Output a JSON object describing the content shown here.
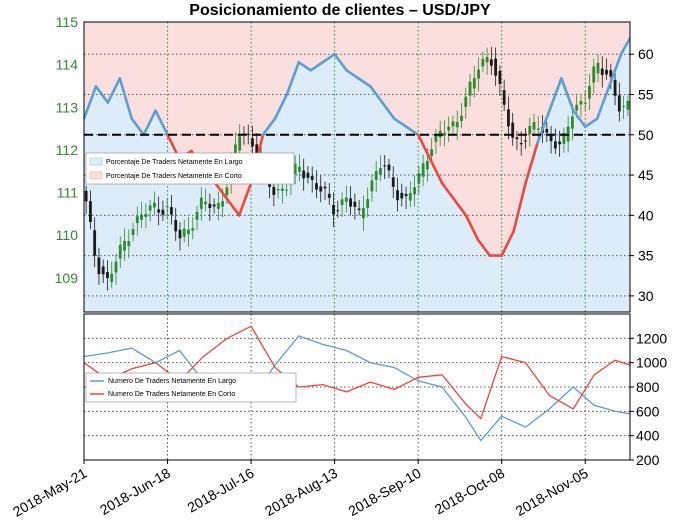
{
  "title": "Posicionamiento de clientes – USD/JPY",
  "colors": {
    "long_line": "#5a9fd4",
    "short_line": "#f0473c",
    "long_fill": "#dcecf8",
    "short_fill": "#fbdede",
    "candle_up": "#2e8b2e",
    "candle_down": "#1a1a1a",
    "price_axis": "#2e8b2e"
  },
  "chart_data": [
    {
      "type": "line",
      "title": "Posicionamiento de clientes – USD/JPY",
      "left_axis": {
        "ylim": [
          108.2,
          115
        ],
        "ticks": [
          109,
          110,
          111,
          112,
          113,
          114,
          115
        ]
      },
      "right_axis": {
        "ylim": [
          28,
          64
        ],
        "ticks": [
          30,
          35,
          40,
          45,
          50,
          55,
          60
        ]
      },
      "x_ticks": [
        "2018-May-21",
        "2018-Jun-18",
        "2018-Jul-16",
        "2018-Aug-13",
        "2018-Sep-10",
        "2018-Oct-08",
        "2018-Nov-05"
      ],
      "x_dates_start": "2018-05-21",
      "x_dates_end": "2018-11-20",
      "reference_line": 50,
      "legend": [
        "Porcentaje De Traders Netamente En Largo",
        "Porcentaje De Traders Netamente En Corto"
      ],
      "series": [
        {
          "name": "Porcentaje De Traders Netamente En Largo",
          "axis": "right",
          "points": [
            [
              "2018-05-21",
              52
            ],
            [
              "2018-05-25",
              56
            ],
            [
              "2018-05-29",
              54
            ],
            [
              "2018-06-02",
              57
            ],
            [
              "2018-06-06",
              52
            ],
            [
              "2018-06-10",
              50
            ],
            [
              "2018-06-14",
              53
            ],
            [
              "2018-06-18",
              50
            ],
            [
              "2018-06-22",
              47
            ],
            [
              "2018-06-26",
              48
            ],
            [
              "2018-06-30",
              46
            ],
            [
              "2018-07-04",
              44
            ],
            [
              "2018-07-08",
              42
            ],
            [
              "2018-07-12",
              40
            ],
            [
              "2018-07-16",
              44
            ],
            [
              "2018-07-20",
              50
            ],
            [
              "2018-07-24",
              52
            ],
            [
              "2018-07-28",
              55
            ],
            [
              "2018-08-01",
              59
            ],
            [
              "2018-08-05",
              58
            ],
            [
              "2018-08-09",
              59
            ],
            [
              "2018-08-13",
              60
            ],
            [
              "2018-08-17",
              58
            ],
            [
              "2018-08-21",
              57
            ],
            [
              "2018-08-25",
              56
            ],
            [
              "2018-08-29",
              54
            ],
            [
              "2018-09-02",
              52
            ],
            [
              "2018-09-06",
              51
            ],
            [
              "2018-09-10",
              50
            ],
            [
              "2018-09-14",
              47
            ],
            [
              "2018-09-18",
              44
            ],
            [
              "2018-09-22",
              42
            ],
            [
              "2018-09-26",
              40
            ],
            [
              "2018-09-30",
              37
            ],
            [
              "2018-10-04",
              35
            ],
            [
              "2018-10-08",
              35
            ],
            [
              "2018-10-12",
              38
            ],
            [
              "2018-10-16",
              44
            ],
            [
              "2018-10-20",
              49
            ],
            [
              "2018-10-24",
              53
            ],
            [
              "2018-10-28",
              57
            ],
            [
              "2018-11-01",
              53
            ],
            [
              "2018-11-05",
              51
            ],
            [
              "2018-11-09",
              52
            ],
            [
              "2018-11-13",
              56
            ],
            [
              "2018-11-17",
              60
            ],
            [
              "2018-11-20",
              62
            ]
          ]
        },
        {
          "name": "Porcentaje De Traders Netamente En Corto",
          "axis": "right",
          "points": [
            [
              "2018-05-21",
              48
            ],
            [
              "2018-05-25",
              44
            ],
            [
              "2018-05-29",
              46
            ],
            [
              "2018-06-02",
              43
            ],
            [
              "2018-06-06",
              48
            ],
            [
              "2018-06-10",
              50
            ],
            [
              "2018-06-14",
              47
            ],
            [
              "2018-06-18",
              50
            ],
            [
              "2018-06-22",
              53
            ],
            [
              "2018-06-26",
              52
            ],
            [
              "2018-06-30",
              54
            ],
            [
              "2018-07-04",
              56
            ],
            [
              "2018-07-08",
              58
            ],
            [
              "2018-07-12",
              60
            ],
            [
              "2018-07-16",
              56
            ],
            [
              "2018-07-20",
              50
            ],
            [
              "2018-07-24",
              48
            ],
            [
              "2018-07-28",
              45
            ],
            [
              "2018-08-01",
              41
            ],
            [
              "2018-08-05",
              42
            ],
            [
              "2018-08-09",
              41
            ],
            [
              "2018-08-13",
              40
            ],
            [
              "2018-08-17",
              42
            ],
            [
              "2018-08-21",
              43
            ],
            [
              "2018-08-25",
              44
            ],
            [
              "2018-08-29",
              46
            ],
            [
              "2018-09-02",
              48
            ],
            [
              "2018-09-06",
              49
            ],
            [
              "2018-09-10",
              50
            ],
            [
              "2018-09-14",
              53
            ],
            [
              "2018-09-18",
              56
            ],
            [
              "2018-09-22",
              58
            ],
            [
              "2018-09-26",
              60
            ],
            [
              "2018-09-30",
              63
            ],
            [
              "2018-10-04",
              65
            ],
            [
              "2018-10-08",
              65
            ],
            [
              "2018-10-12",
              62
            ],
            [
              "2018-10-16",
              56
            ],
            [
              "2018-10-20",
              51
            ],
            [
              "2018-10-24",
              47
            ],
            [
              "2018-10-28",
              43
            ],
            [
              "2018-11-01",
              47
            ],
            [
              "2018-11-05",
              49
            ],
            [
              "2018-11-09",
              48
            ],
            [
              "2018-11-13",
              44
            ],
            [
              "2018-11-17",
              40
            ],
            [
              "2018-11-20",
              38
            ]
          ]
        }
      ],
      "price": {
        "name": "USD/JPY",
        "axis": "left",
        "type": "candlestick",
        "points": [
          [
            "2018-05-21",
            111.0
          ],
          [
            "2018-05-25",
            109.4
          ],
          [
            "2018-05-29",
            108.9
          ],
          [
            "2018-06-02",
            109.6
          ],
          [
            "2018-06-06",
            110.2
          ],
          [
            "2018-06-10",
            110.5
          ],
          [
            "2018-06-14",
            110.7
          ],
          [
            "2018-06-18",
            110.6
          ],
          [
            "2018-06-22",
            109.9
          ],
          [
            "2018-06-26",
            110.3
          ],
          [
            "2018-06-30",
            110.8
          ],
          [
            "2018-07-04",
            110.6
          ],
          [
            "2018-07-08",
            111.2
          ],
          [
            "2018-07-12",
            112.4
          ],
          [
            "2018-07-16",
            112.3
          ],
          [
            "2018-07-20",
            111.4
          ],
          [
            "2018-07-24",
            111.0
          ],
          [
            "2018-07-28",
            111.2
          ],
          [
            "2018-08-01",
            111.6
          ],
          [
            "2018-08-05",
            111.3
          ],
          [
            "2018-08-09",
            111.0
          ],
          [
            "2018-08-13",
            110.6
          ],
          [
            "2018-08-17",
            110.9
          ],
          [
            "2018-08-21",
            110.4
          ],
          [
            "2018-08-25",
            111.2
          ],
          [
            "2018-08-29",
            111.7
          ],
          [
            "2018-09-02",
            111.1
          ],
          [
            "2018-09-06",
            110.8
          ],
          [
            "2018-09-10",
            111.3
          ],
          [
            "2018-09-14",
            112.1
          ],
          [
            "2018-09-18",
            112.4
          ],
          [
            "2018-09-22",
            112.6
          ],
          [
            "2018-09-26",
            113.2
          ],
          [
            "2018-09-30",
            113.9
          ],
          [
            "2018-10-04",
            114.3
          ],
          [
            "2018-10-08",
            113.2
          ],
          [
            "2018-10-12",
            112.2
          ],
          [
            "2018-10-16",
            112.3
          ],
          [
            "2018-10-20",
            112.6
          ],
          [
            "2018-10-24",
            112.3
          ],
          [
            "2018-10-28",
            112.0
          ],
          [
            "2018-11-01",
            113.0
          ],
          [
            "2018-11-05",
            113.2
          ],
          [
            "2018-11-09",
            114.0
          ],
          [
            "2018-11-13",
            113.8
          ],
          [
            "2018-11-17",
            112.8
          ],
          [
            "2018-11-20",
            113.1
          ]
        ]
      }
    },
    {
      "type": "line",
      "ylim": [
        200,
        1400
      ],
      "y_ticks": [
        200,
        400,
        600,
        800,
        1000,
        1200
      ],
      "legend": [
        "Numero De Traders Netamente En Largo",
        "Numero De Traders Netamente En Corto"
      ],
      "series": [
        {
          "name": "Numero De Traders Netamente En Largo",
          "points": [
            [
              "2018-05-21",
              1050
            ],
            [
              "2018-05-29",
              1080
            ],
            [
              "2018-06-06",
              1120
            ],
            [
              "2018-06-14",
              1000
            ],
            [
              "2018-06-22",
              1100
            ],
            [
              "2018-06-30",
              850
            ],
            [
              "2018-07-08",
              780
            ],
            [
              "2018-07-16",
              700
            ],
            [
              "2018-07-24",
              980
            ],
            [
              "2018-08-01",
              1220
            ],
            [
              "2018-08-09",
              1150
            ],
            [
              "2018-08-17",
              1100
            ],
            [
              "2018-08-25",
              1000
            ],
            [
              "2018-09-02",
              960
            ],
            [
              "2018-09-10",
              850
            ],
            [
              "2018-09-18",
              800
            ],
            [
              "2018-09-26",
              550
            ],
            [
              "2018-10-01",
              360
            ],
            [
              "2018-10-08",
              560
            ],
            [
              "2018-10-16",
              470
            ],
            [
              "2018-10-24",
              620
            ],
            [
              "2018-11-01",
              800
            ],
            [
              "2018-11-08",
              650
            ],
            [
              "2018-11-15",
              600
            ],
            [
              "2018-11-20",
              580
            ]
          ]
        },
        {
          "name": "Numero De Traders Netamente En Corto",
          "points": [
            [
              "2018-05-21",
              1000
            ],
            [
              "2018-05-29",
              860
            ],
            [
              "2018-06-06",
              950
            ],
            [
              "2018-06-14",
              1000
            ],
            [
              "2018-06-22",
              850
            ],
            [
              "2018-06-30",
              1050
            ],
            [
              "2018-07-08",
              1200
            ],
            [
              "2018-07-16",
              1300
            ],
            [
              "2018-07-24",
              960
            ],
            [
              "2018-08-01",
              800
            ],
            [
              "2018-08-09",
              820
            ],
            [
              "2018-08-17",
              760
            ],
            [
              "2018-08-25",
              840
            ],
            [
              "2018-09-02",
              780
            ],
            [
              "2018-09-10",
              880
            ],
            [
              "2018-09-18",
              900
            ],
            [
              "2018-09-26",
              660
            ],
            [
              "2018-10-01",
              540
            ],
            [
              "2018-10-08",
              1050
            ],
            [
              "2018-10-16",
              1000
            ],
            [
              "2018-10-24",
              730
            ],
            [
              "2018-11-01",
              620
            ],
            [
              "2018-11-08",
              900
            ],
            [
              "2018-11-15",
              1020
            ],
            [
              "2018-11-20",
              980
            ]
          ]
        }
      ]
    }
  ]
}
